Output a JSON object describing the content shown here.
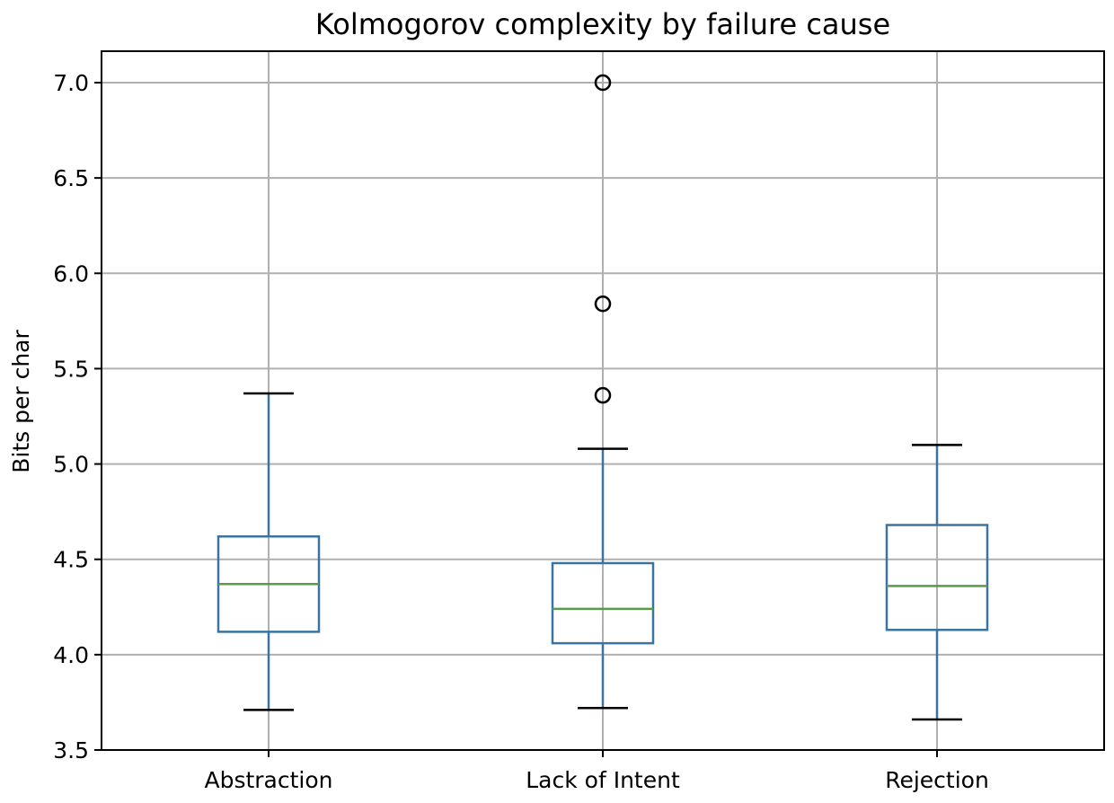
{
  "chart_data": {
    "type": "box",
    "title": "Kolmogorov complexity by failure cause",
    "xlabel": "",
    "ylabel": "Bits per char",
    "ylim": [
      3.5,
      7.15
    ],
    "yticks": [
      "3.5",
      "4.0",
      "4.5",
      "5.0",
      "5.5",
      "6.0",
      "6.5",
      "7.0"
    ],
    "grid": true,
    "categories": [
      "Abstraction",
      "Lack of Intent",
      "Rejection"
    ],
    "boxes": [
      {
        "category": "Abstraction",
        "whisker_low": 3.71,
        "q1": 4.12,
        "median": 4.37,
        "q3": 4.62,
        "whisker_high": 5.37,
        "outliers": []
      },
      {
        "category": "Lack of Intent",
        "whisker_low": 3.72,
        "q1": 4.06,
        "median": 4.24,
        "q3": 4.48,
        "whisker_high": 5.08,
        "outliers": [
          5.36,
          5.84,
          7.0
        ]
      },
      {
        "category": "Rejection",
        "whisker_low": 3.66,
        "q1": 4.13,
        "median": 4.36,
        "q3": 4.68,
        "whisker_high": 5.1,
        "outliers": []
      }
    ],
    "colors": {
      "box": "#3b74a0",
      "median": "#5b9a4a",
      "whisker_cap": "#000000",
      "grid": "#b0b0b0",
      "outlier": "#000000"
    }
  }
}
